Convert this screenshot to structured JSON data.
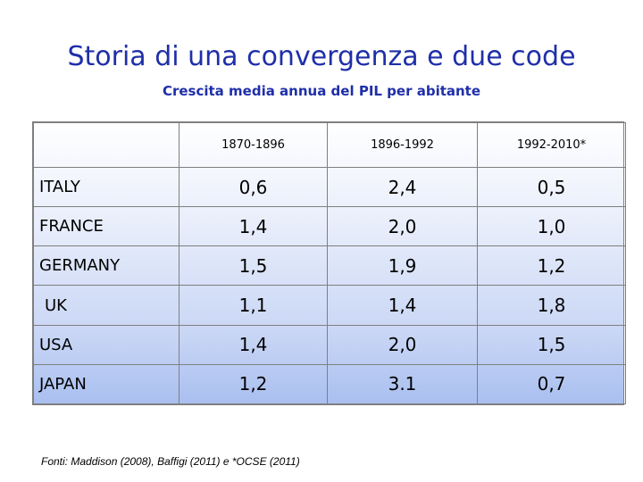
{
  "title": "Storia di una convergenza e due code",
  "subtitle": "Crescita media annua del PIL per abitante",
  "table": {
    "corner": "",
    "columns": [
      "1870-1896",
      "1896-1992",
      "1992-2010*"
    ],
    "rows": [
      {
        "country": "ITALY",
        "values": [
          "0,6",
          "2,4",
          "0,5"
        ]
      },
      {
        "country": "FRANCE",
        "values": [
          "1,4",
          "2,0",
          "1,0"
        ]
      },
      {
        "country": "GERMANY",
        "values": [
          "1,5",
          "1,9",
          "1,2"
        ]
      },
      {
        "country": "UK",
        "values": [
          "1,1",
          "1,4",
          "1,8"
        ]
      },
      {
        "country": "USA",
        "values": [
          "1,4",
          "2,0",
          "1,5"
        ]
      },
      {
        "country": "JAPAN",
        "values": [
          "1,2",
          "3.1",
          "0,7"
        ]
      }
    ]
  },
  "footnote": "Fonti: Maddison (2008), Baffigi (2011) e *OCSE (2011)",
  "colors": {
    "title": "#1f2fa8",
    "table_border": "#7f7f7f",
    "table_gradient_bottom": "#a9bff0"
  }
}
